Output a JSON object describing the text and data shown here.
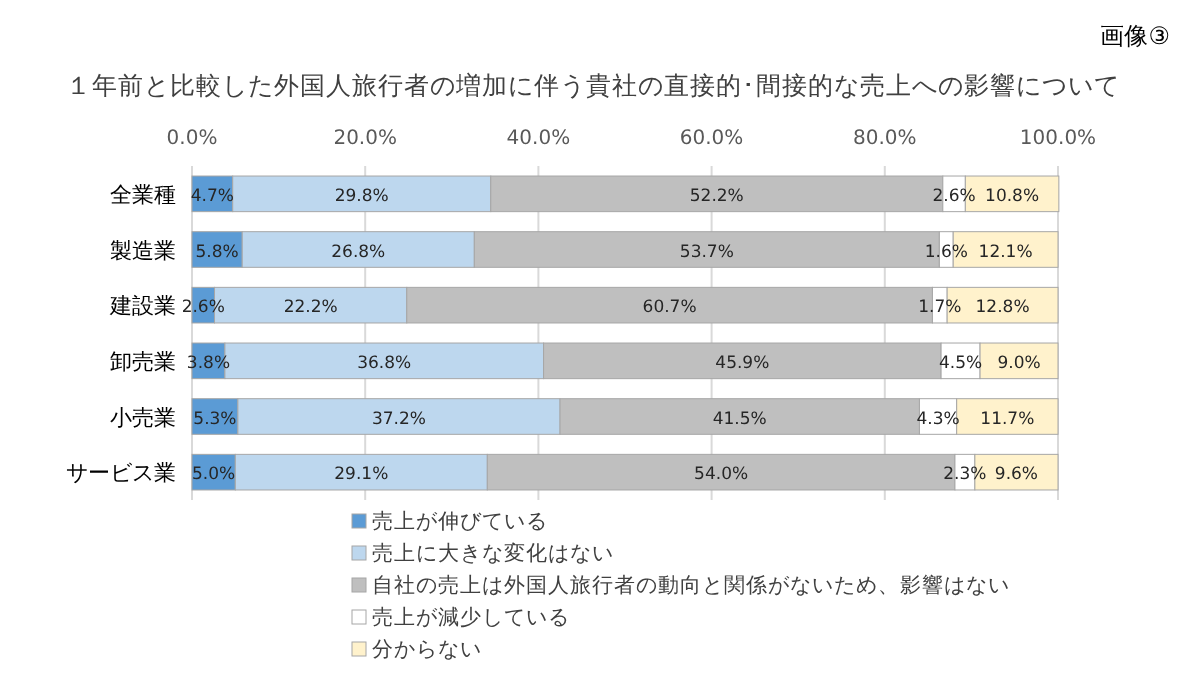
{
  "chart_data": {
    "type": "bar",
    "orientation": "horizontal",
    "stacked": true,
    "title": "１年前と比較した外国人旅行者の増加に伴う貴社の直接的･間接的な売上への影響について",
    "annotations": [
      "画像③"
    ],
    "categories": [
      "全業種",
      "製造業",
      "建設業",
      "卸売業",
      "小売業",
      "サービス業"
    ],
    "xlim": [
      0,
      100
    ],
    "xticks": [
      {
        "value": 0,
        "label": "0.0%"
      },
      {
        "value": 20,
        "label": "20.0%"
      },
      {
        "value": 40,
        "label": "40.0%"
      },
      {
        "value": 60,
        "label": "60.0%"
      },
      {
        "value": 80,
        "label": "80.0%"
      },
      {
        "value": 100,
        "label": "100.0%"
      }
    ],
    "grid": "x",
    "legend": "bottom",
    "series": [
      {
        "name": "売上が伸びている",
        "color": "#5b9bd5",
        "values": [
          4.7,
          5.8,
          2.6,
          3.8,
          5.3,
          5.0
        ],
        "value_labels": [
          "4.7%",
          "5.8%",
          "2.6%",
          "3.8%",
          "5.3%",
          "5.0%"
        ]
      },
      {
        "name": "売上に大きな変化はない",
        "color": "#bdd7ee",
        "values": [
          29.8,
          26.8,
          22.2,
          36.8,
          37.2,
          29.1
        ],
        "value_labels": [
          "29.8%",
          "26.8%",
          "22.2%",
          "36.8%",
          "37.2%",
          "29.1%"
        ]
      },
      {
        "name": "自社の売上は外国人旅行者の動向と関係がないため、影響はない",
        "color": "#bfbfbf",
        "values": [
          52.2,
          53.7,
          60.7,
          45.9,
          41.5,
          54.0
        ],
        "value_labels": [
          "52.2%",
          "53.7%",
          "60.7%",
          "45.9%",
          "41.5%",
          "54.0%"
        ]
      },
      {
        "name": "売上が減少している",
        "color": "#ffffff",
        "values": [
          2.6,
          1.6,
          1.7,
          4.5,
          4.3,
          2.3
        ],
        "value_labels": [
          "2.6%",
          "1.6%",
          "1.7%",
          "4.5%",
          "4.3%",
          "2.3%"
        ]
      },
      {
        "name": "分からない",
        "color": "#fff2cc",
        "values": [
          10.8,
          12.1,
          12.8,
          9.0,
          11.7,
          9.6
        ],
        "value_labels": [
          "10.8%",
          "12.1%",
          "12.8%",
          "9.0%",
          "11.7%",
          "9.6%"
        ]
      }
    ]
  }
}
